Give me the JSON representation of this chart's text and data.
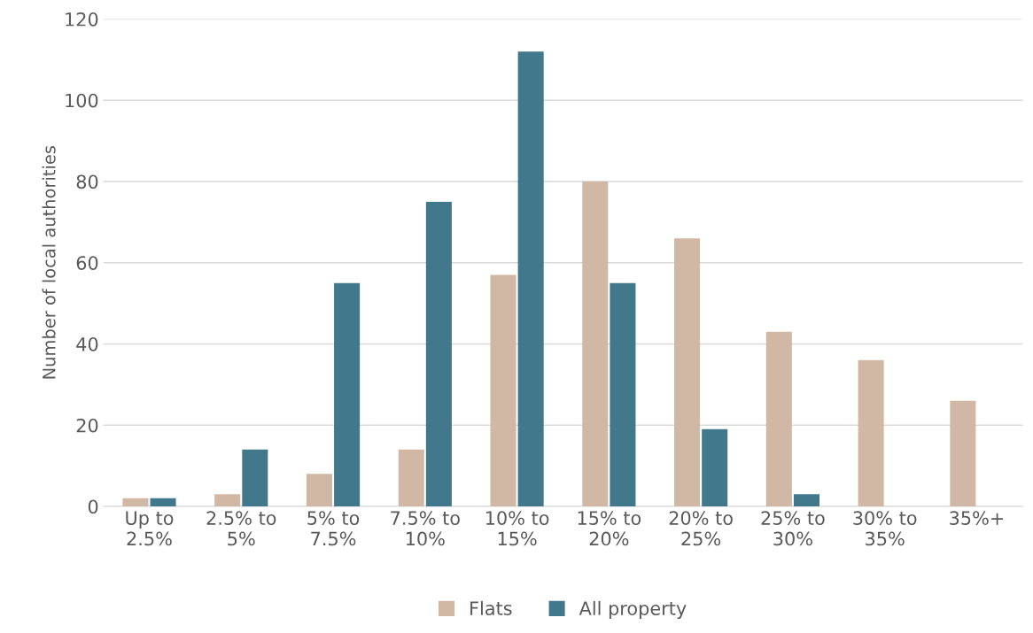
{
  "chart_data": {
    "type": "bar",
    "ylabel": "Number of local authorities",
    "categories": [
      "Up to\n2.5%",
      "2.5% to\n5%",
      "5% to\n7.5%",
      "7.5% to\n10%",
      "10% to\n15%",
      "15% to\n20%",
      "20% to\n25%",
      "25% to\n30%",
      "30% to\n35%",
      "35%+"
    ],
    "series": [
      {
        "name": "Flats",
        "color": "#d1b8a4",
        "values": [
          2,
          3,
          8,
          14,
          57,
          80,
          66,
          43,
          36,
          26
        ]
      },
      {
        "name": "All property",
        "color": "#41788c",
        "values": [
          2,
          14,
          55,
          75,
          112,
          55,
          19,
          3,
          null,
          null
        ]
      }
    ],
    "ylim": [
      0,
      120
    ],
    "yticks": [
      0,
      20,
      40,
      60,
      80,
      100,
      120
    ],
    "grid": "y",
    "legend": "bottom"
  }
}
